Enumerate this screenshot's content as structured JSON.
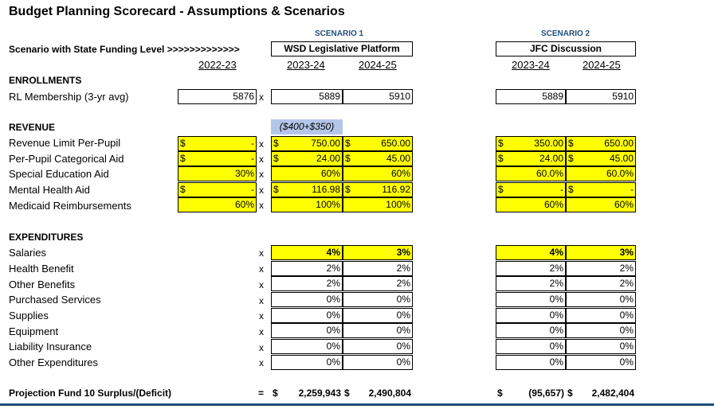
{
  "title": "Budget Planning Scorecard - Assumptions & Scenarios",
  "scenario1_tag": "SCENARIO 1",
  "scenario2_tag": "SCENARIO 2",
  "scenario_label": "Scenario with State Funding Level >>>>>>>>>>>>>",
  "scenario1_name": "WSD Legislative Platform",
  "scenario2_name": "JFC Discussion",
  "years": {
    "base": "2022-23",
    "s1a": "2023-24",
    "s1b": "2024-25",
    "s2a": "2023-24",
    "s2b": "2024-25"
  },
  "x_mark": "x",
  "eq_mark": "=",
  "enrollments": {
    "heading": "ENROLLMENTS",
    "rl_label": "RL Membership (3-yr avg)",
    "values": [
      "5876",
      "5889",
      "5910",
      "5889",
      "5910"
    ]
  },
  "revenue": {
    "heading": "REVENUE",
    "note": "($400+$350)",
    "rows": [
      {
        "label": "Revenue Limit Per-Pupil",
        "base": "-",
        "s1a": "750.00",
        "s1b": "650.00",
        "s2a": "350.00",
        "s2b": "650.00"
      },
      {
        "label": "Per-Pupil Categorical Aid",
        "base": "-",
        "s1a": "24.00",
        "s1b": "45.00",
        "s2a": "24.00",
        "s2b": "45.00"
      },
      {
        "label": "Special Education Aid",
        "base": "30%",
        "s1a": "60%",
        "s1b": "60%",
        "s2a": "60.0%",
        "s2b": "60.0%"
      },
      {
        "label": "Mental Health Aid",
        "base": "-",
        "s1a": "116.98",
        "s1b": "116.92",
        "s2a": "-",
        "s2b": "-"
      },
      {
        "label": "Medicaid Reimbursements",
        "base": "60%",
        "s1a": "100%",
        "s1b": "100%",
        "s2a": "60%",
        "s2b": "60%"
      }
    ]
  },
  "expenditures": {
    "heading": "EXPENDITURES",
    "rows": [
      {
        "label": "Salaries",
        "s1a": "4%",
        "s1b": "3%",
        "s2a": "4%",
        "s2b": "3%"
      },
      {
        "label": "Health Benefit",
        "s1a": "2%",
        "s1b": "2%",
        "s2a": "2%",
        "s2b": "2%"
      },
      {
        "label": "Other Benefits",
        "s1a": "2%",
        "s1b": "2%",
        "s2a": "2%",
        "s2b": "2%"
      },
      {
        "label": "Purchased Services",
        "s1a": "0%",
        "s1b": "0%",
        "s2a": "0%",
        "s2b": "0%"
      },
      {
        "label": "Supplies",
        "s1a": "0%",
        "s1b": "0%",
        "s2a": "0%",
        "s2b": "0%"
      },
      {
        "label": "Equipment",
        "s1a": "0%",
        "s1b": "0%",
        "s2a": "0%",
        "s2b": "0%"
      },
      {
        "label": "Liability Insurance",
        "s1a": "0%",
        "s1b": "0%",
        "s2a": "0%",
        "s2b": "0%"
      },
      {
        "label": "Other Expenditures",
        "s1a": "0%",
        "s1b": "0%",
        "s2a": "0%",
        "s2b": "0%"
      }
    ]
  },
  "projection": {
    "label": "Projection Fund 10 Surplus/(Deficit)",
    "s1a": "2,259,943",
    "s1b": "2,490,804",
    "s2a": "(95,657)",
    "s2b": "2,482,404"
  },
  "currency": "$",
  "colors": {
    "highlight": "#ffff00",
    "note_bg": "#b4c6e7",
    "scenario_tag": "#1f4e79"
  }
}
